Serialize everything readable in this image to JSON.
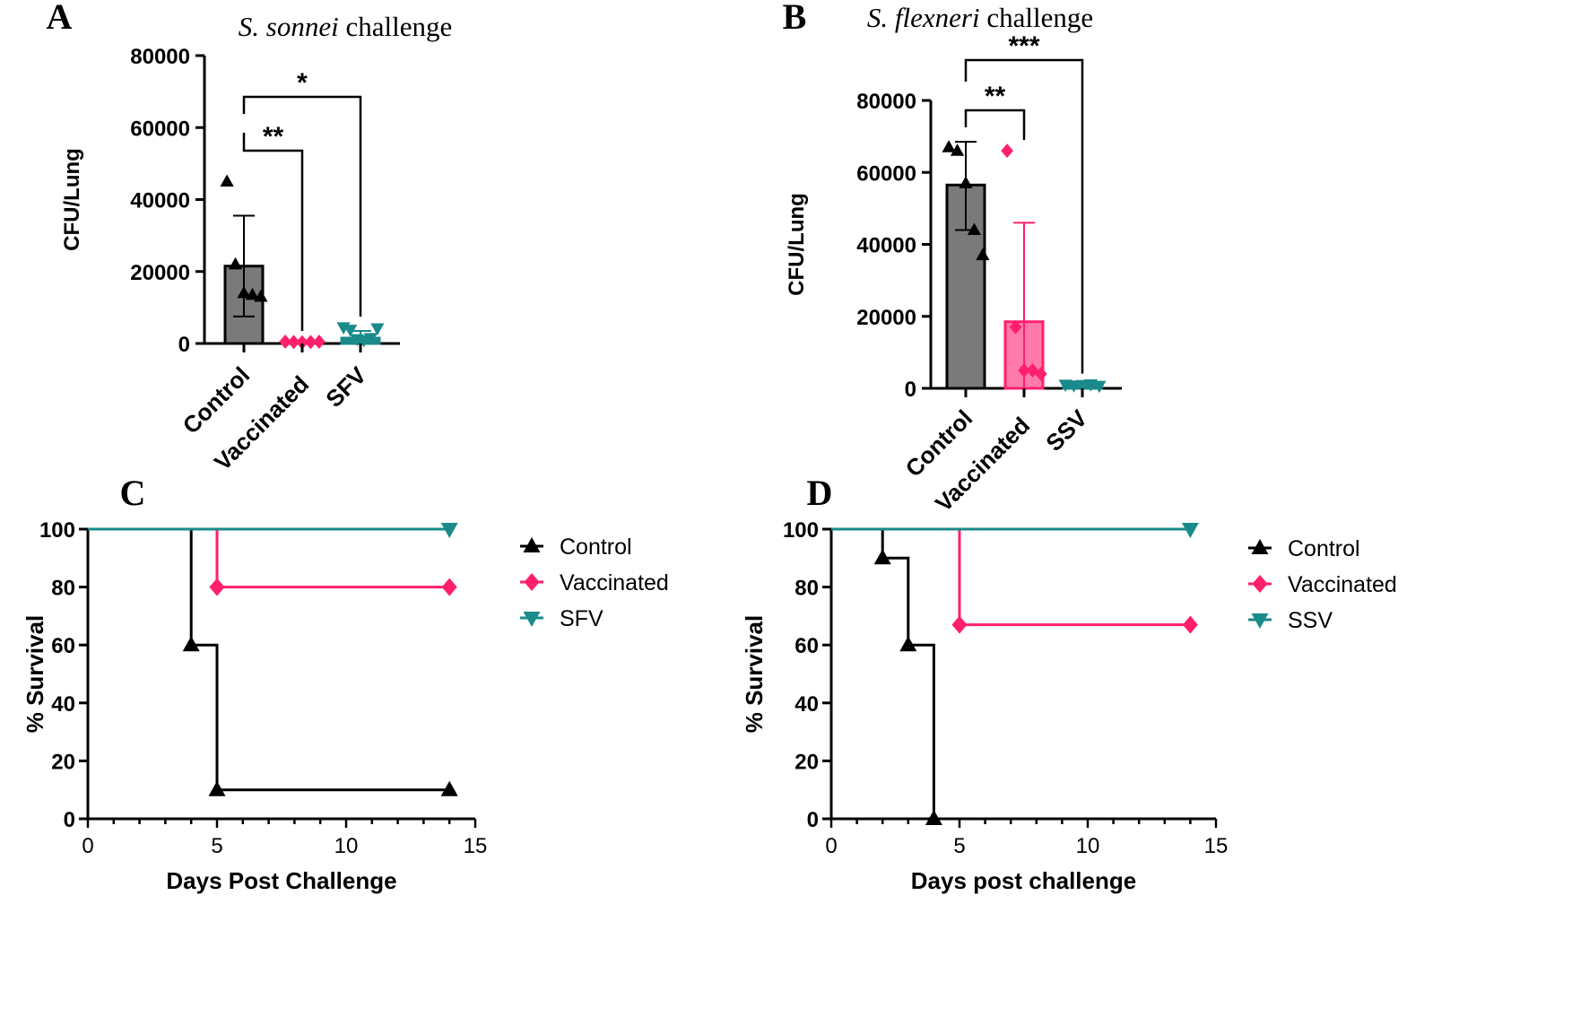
{
  "colors": {
    "black": "#000000",
    "control_bar": "#7a7a7a",
    "vaccinated": "#ff1f6d",
    "vaccinated_bar": "#ff7aaa",
    "teal": "#1a8a8a"
  },
  "chart_data": [
    {
      "id": "A",
      "type": "bar",
      "panel_letter": "A",
      "title_italic": "S. sonnei",
      "title_rest": " challenge",
      "ylabel": "CFU/Lung",
      "xlabel": "",
      "ylim": [
        0,
        80000
      ],
      "yticks": [
        0,
        20000,
        40000,
        60000,
        80000
      ],
      "yticklabels": [
        "0",
        "20000",
        "40000",
        "60000",
        "80000"
      ],
      "categories": [
        "Control",
        "Vaccinated",
        "SFV"
      ],
      "bars": [
        {
          "name": "Control",
          "mean": 21500,
          "sd_low": 7500,
          "sd_high": 35500,
          "color": "#7a7a7a",
          "marker": "triangle-up",
          "marker_color": "#000000",
          "points": [
            45000,
            22000,
            14000,
            13500,
            13000
          ]
        },
        {
          "name": "Vaccinated",
          "mean": 400,
          "sd_low": 0,
          "sd_high": 900,
          "color": "#ff1f6d",
          "marker": "diamond",
          "marker_color": "#ff1f6d",
          "points": [
            500,
            400,
            300,
            400,
            500
          ]
        },
        {
          "name": "SFV",
          "mean": 1500,
          "sd_low": 0,
          "sd_high": 3500,
          "color": "#1a8a8a",
          "marker": "triangle-down",
          "marker_color": "#1a8a8a",
          "points": [
            4500,
            3800,
            1200,
            900,
            1500,
            4200
          ]
        }
      ],
      "significance": [
        {
          "from": "Control",
          "to": "Vaccinated",
          "label": "**"
        },
        {
          "from": "Control",
          "to": "SFV",
          "label": "*"
        }
      ]
    },
    {
      "id": "B",
      "type": "bar",
      "panel_letter": "B",
      "title_italic": "S. flexneri",
      "title_rest": " challenge",
      "ylabel": "CFU/Lung",
      "xlabel": "",
      "ylim": [
        0,
        80000
      ],
      "yticks": [
        0,
        20000,
        40000,
        60000,
        80000
      ],
      "yticklabels": [
        "0",
        "20000",
        "40000",
        "60000",
        "80000"
      ],
      "categories": [
        "Control",
        "Vaccinated",
        "SSV"
      ],
      "bars": [
        {
          "name": "Control",
          "mean": 56500,
          "sd_low": 44000,
          "sd_high": 68500,
          "color": "#7a7a7a",
          "marker": "triangle-up",
          "marker_color": "#000000",
          "points": [
            67000,
            66000,
            57000,
            44000,
            37000
          ]
        },
        {
          "name": "Vaccinated",
          "mean": 18500,
          "sd_low": 0,
          "sd_high": 46000,
          "color": "#ff7aaa",
          "marker": "diamond",
          "marker_color": "#ff1f6d",
          "points": [
            66000,
            17000,
            5000,
            5000,
            4000
          ]
        },
        {
          "name": "SSV",
          "mean": 900,
          "sd_low": 0,
          "sd_high": 1500,
          "color": "#1a8a8a",
          "marker": "triangle-down",
          "marker_color": "#1a8a8a",
          "points": [
            1000,
            800,
            900,
            1100,
            700
          ]
        }
      ],
      "significance": [
        {
          "from": "Control",
          "to": "Vaccinated",
          "label": "**"
        },
        {
          "from": "Control",
          "to": "SSV",
          "label": "***"
        }
      ]
    },
    {
      "id": "C",
      "type": "line",
      "panel_letter": "C",
      "title": "",
      "ylabel": "% Survival",
      "xlabel": "Days Post Challenge",
      "xlim": [
        0,
        15
      ],
      "ylim": [
        0,
        100
      ],
      "xticks": [
        0,
        5,
        10,
        15
      ],
      "xticklabels": [
        "0",
        "5",
        "10",
        "15"
      ],
      "yticks": [
        0,
        20,
        40,
        60,
        80,
        100
      ],
      "yticklabels": [
        "0",
        "20",
        "40",
        "60",
        "80",
        "100"
      ],
      "series": [
        {
          "name": "Control",
          "color": "#000000",
          "marker": "triangle-up",
          "steps": [
            [
              0,
              100
            ],
            [
              4,
              60
            ],
            [
              5,
              10
            ],
            [
              14,
              10
            ]
          ]
        },
        {
          "name": "Vaccinated",
          "color": "#ff1f6d",
          "marker": "diamond",
          "steps": [
            [
              0,
              100
            ],
            [
              5,
              80
            ],
            [
              14,
              80
            ]
          ]
        },
        {
          "name": "SFV",
          "color": "#1a8a8a",
          "marker": "triangle-down",
          "steps": [
            [
              0,
              100
            ],
            [
              14,
              100
            ]
          ]
        }
      ],
      "legend": [
        "Control",
        "Vaccinated",
        "SFV"
      ]
    },
    {
      "id": "D",
      "type": "line",
      "panel_letter": "D",
      "title": "",
      "ylabel": "% Survival",
      "xlabel": "Days post challenge",
      "xlim": [
        0,
        15
      ],
      "ylim": [
        0,
        100
      ],
      "xticks": [
        0,
        5,
        10,
        15
      ],
      "xticklabels": [
        "0",
        "5",
        "10",
        "15"
      ],
      "yticks": [
        0,
        20,
        40,
        60,
        80,
        100
      ],
      "yticklabels": [
        "0",
        "20",
        "40",
        "60",
        "80",
        "100"
      ],
      "series": [
        {
          "name": "Control",
          "color": "#000000",
          "marker": "triangle-up",
          "steps": [
            [
              0,
              100
            ],
            [
              2,
              90
            ],
            [
              3,
              60
            ],
            [
              4,
              0
            ]
          ]
        },
        {
          "name": "Vaccinated",
          "color": "#ff1f6d",
          "marker": "diamond",
          "steps": [
            [
              0,
              100
            ],
            [
              5,
              67
            ],
            [
              14,
              67
            ]
          ]
        },
        {
          "name": "SSV",
          "color": "#1a8a8a",
          "marker": "triangle-down",
          "steps": [
            [
              0,
              100
            ],
            [
              14,
              100
            ]
          ]
        }
      ],
      "legend": [
        "Control",
        "Vaccinated",
        "SSV"
      ]
    }
  ]
}
